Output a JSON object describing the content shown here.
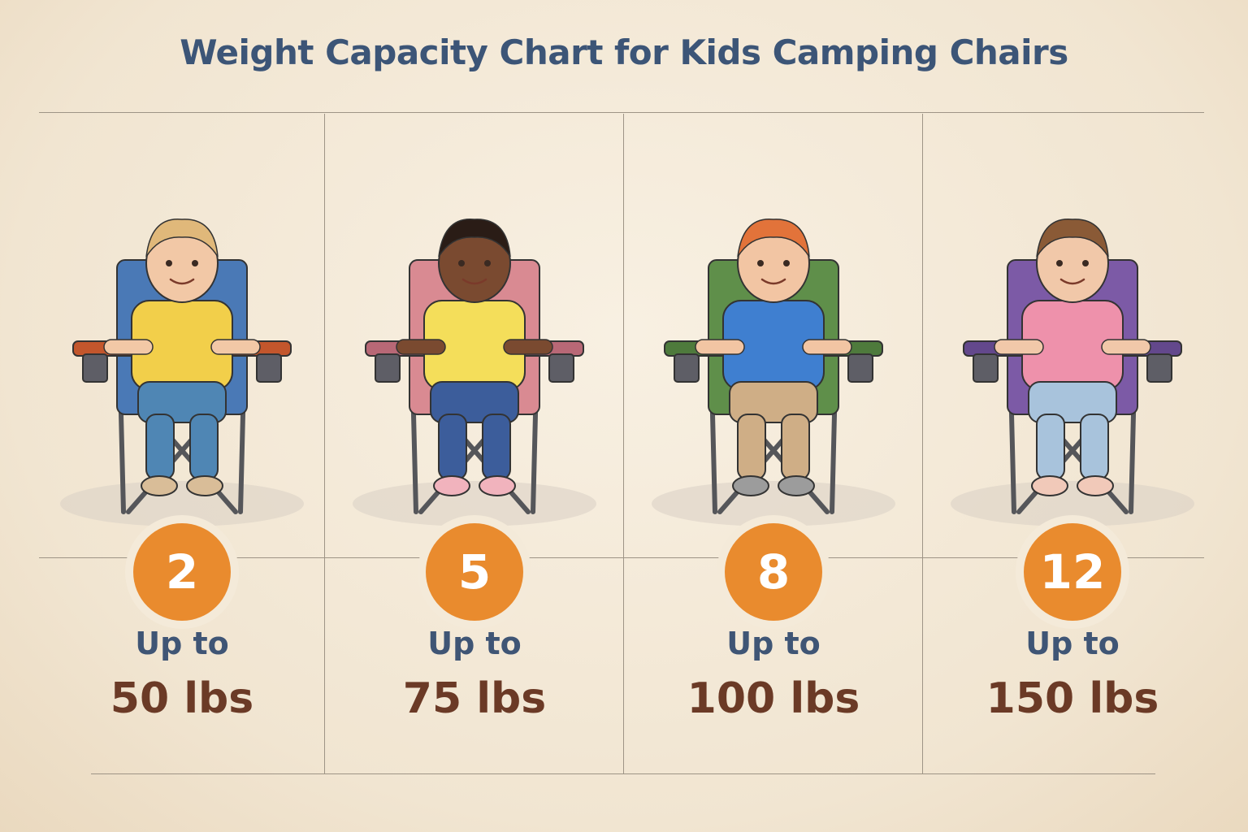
{
  "title": "Weight Capacity Chart for Kids Camping Chairs",
  "columns": [
    {
      "age": "2",
      "upto": "Up to",
      "capacity": "50 lbs",
      "colors": {
        "chair": "#4a79b6",
        "chair_dark": "#c3562c",
        "skin": "#f2c8a6",
        "hair": "#e0b87a",
        "shirt": "#f2cf4a",
        "pants": "#4f86b4",
        "shoe": "#d9bd98"
      }
    },
    {
      "age": "5",
      "upto": "Up to",
      "capacity": "75 lbs",
      "colors": {
        "chair": "#d98a92",
        "chair_dark": "#b86876",
        "skin": "#7a4a30",
        "hair": "#2a1c16",
        "shirt": "#f4de5a",
        "pants": "#3c5d9b",
        "shoe": "#f1b3bd"
      }
    },
    {
      "age": "8",
      "upto": "Up to",
      "capacity": "100 lbs",
      "colors": {
        "chair": "#5f8f4a",
        "chair_dark": "#4e7a3c",
        "skin": "#f2c5a3",
        "hair": "#e2733a",
        "shirt": "#3f7fd0",
        "pants": "#cfae86",
        "shoe": "#9c9c9c"
      }
    },
    {
      "age": "12",
      "upto": "Up to",
      "capacity": "150 lbs",
      "colors": {
        "chair": "#7c5aa6",
        "chair_dark": "#63488c",
        "skin": "#f1c8a9",
        "hair": "#8a5a36",
        "shirt": "#ee91ab",
        "pants": "#a8c3dc",
        "shoe": "#f1c9b9"
      }
    }
  ]
}
